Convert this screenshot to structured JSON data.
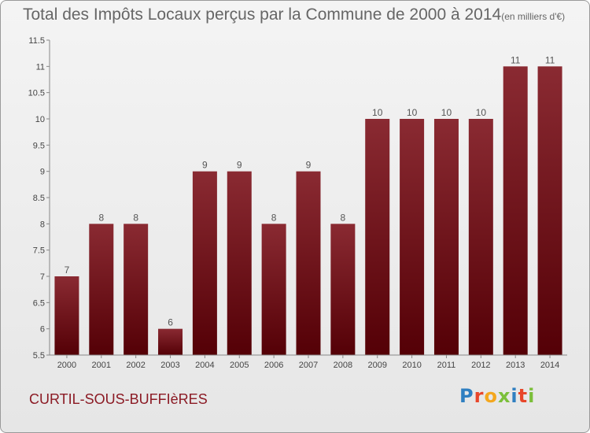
{
  "chart_data": {
    "type": "bar",
    "title": "Total des Impôts Locaux perçus par la Commune de 2000 à 2014",
    "subtitle": "(en milliers d'€)",
    "categories": [
      "2000",
      "2001",
      "2002",
      "2003",
      "2004",
      "2005",
      "2006",
      "2007",
      "2008",
      "2009",
      "2010",
      "2011",
      "2012",
      "2013",
      "2014"
    ],
    "values": [
      7,
      8,
      8,
      6,
      9,
      9,
      8,
      9,
      8,
      10,
      10,
      10,
      10,
      11,
      11
    ],
    "data_labels": [
      "7",
      "8",
      "8",
      "6",
      "9",
      "9",
      "8",
      "9",
      "8",
      "10",
      "10",
      "10",
      "10",
      "11",
      "11"
    ],
    "yticks": [
      5.5,
      6,
      6.5,
      7,
      7.5,
      8,
      8.5,
      9,
      9.5,
      10,
      10.5,
      11,
      11.5
    ],
    "ytick_labels": [
      "5.5",
      "6",
      "6.5",
      "7",
      "7.5",
      "8",
      "8.5",
      "9",
      "9.5",
      "10",
      "10.5",
      "11",
      "11.5"
    ],
    "ylim": [
      5.5,
      11.5
    ],
    "grid": false,
    "bar_color": "#7a0f18"
  },
  "footer": {
    "commune": "CURTIL-SOUS-BUFFIèRES",
    "logo_letters": [
      "P",
      "r",
      "o",
      "x",
      "i",
      "t",
      "i"
    ],
    "logo_colors": [
      "#2f7fc1",
      "#e8462a",
      "#f4a71d",
      "#7bbf3a",
      "#2f7fc1",
      "#e8462a",
      "#7bbf3a"
    ]
  }
}
